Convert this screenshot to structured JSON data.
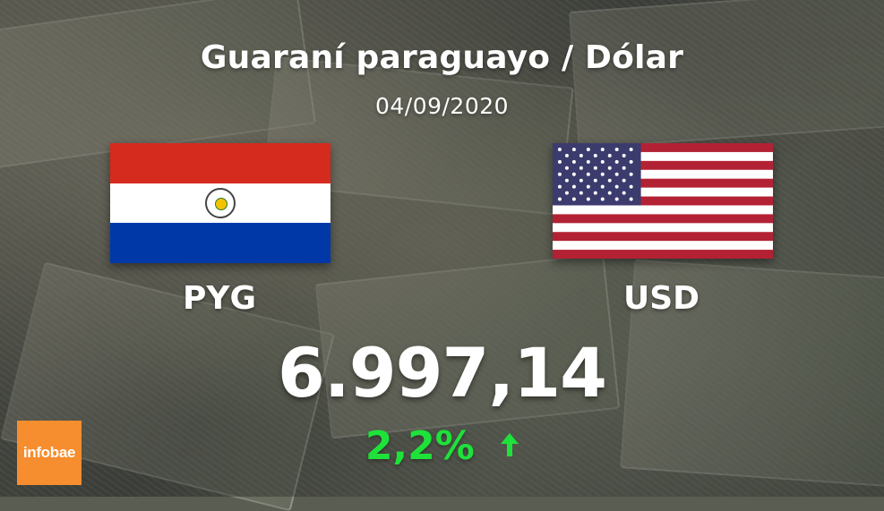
{
  "title": "Guaraní paraguayo / Dólar",
  "date": "04/09/2020",
  "currencies": {
    "from": {
      "code": "PYG",
      "flag": "paraguay-flag"
    },
    "to": {
      "code": "USD",
      "flag": "united-states-flag"
    }
  },
  "rate": "6.997,14",
  "change": {
    "value": "2,2%",
    "direction": "up",
    "color": "#1ee23a"
  },
  "brand": {
    "logo_text": "infobae",
    "color": "#f68d2e"
  }
}
